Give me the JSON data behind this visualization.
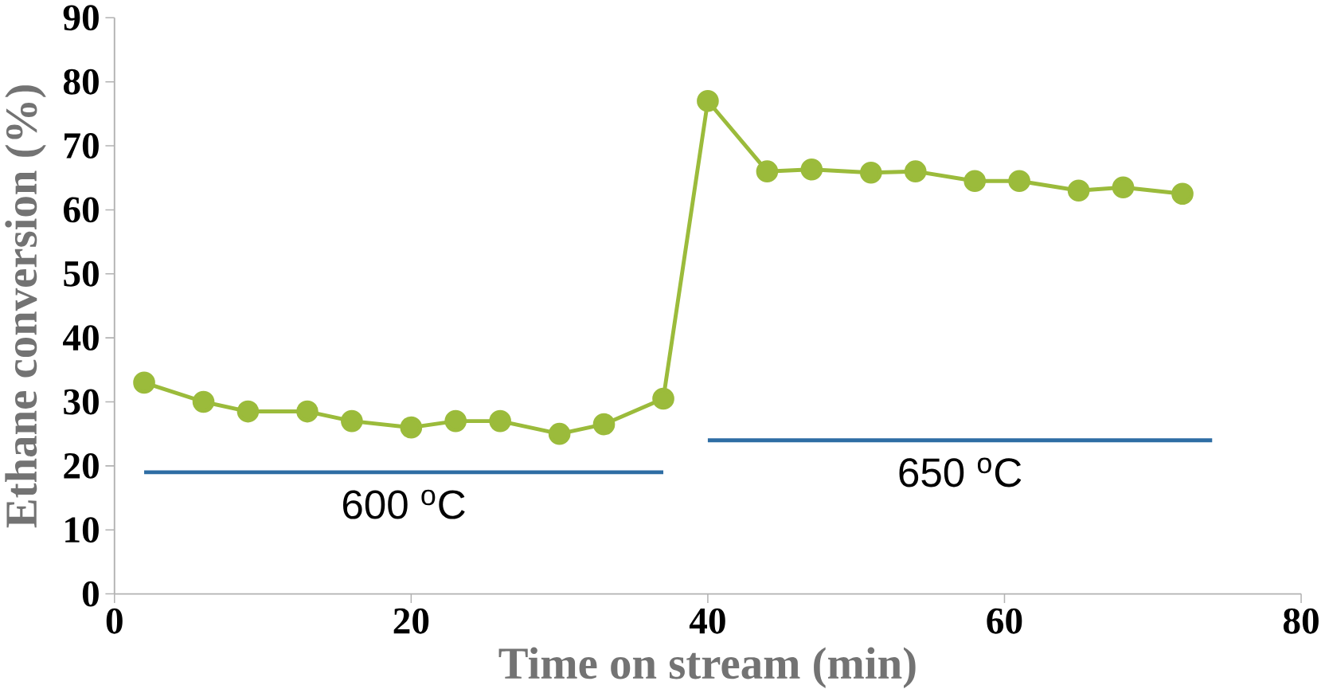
{
  "chart_data": {
    "type": "line",
    "xlabel": "Time on stream (min)",
    "ylabel": "Ethane conversion (%)",
    "xlim": [
      0,
      80
    ],
    "xticks": [
      0,
      20,
      40,
      60,
      80
    ],
    "ylim": [
      0,
      90
    ],
    "yticks": [
      0,
      10,
      20,
      30,
      40,
      50,
      60,
      70,
      80,
      90
    ],
    "series": [
      {
        "color": "#9bbb3b",
        "marker": "circle",
        "x": [
          2,
          6,
          9,
          13,
          16,
          20,
          23,
          26,
          30,
          33,
          37,
          40,
          44,
          47,
          51,
          54,
          58,
          61,
          65,
          68,
          72
        ],
        "values": [
          33,
          30,
          28.5,
          28.5,
          27,
          26,
          27,
          27,
          25,
          26.5,
          30.5,
          77,
          66,
          66.3,
          65.8,
          66,
          64.5,
          64.5,
          63,
          63.5,
          62.5
        ]
      },
      {
        "color": "#2e6da4",
        "marker": "none",
        "x": [
          2,
          37
        ],
        "values": [
          19,
          19
        ]
      },
      {
        "color": "#2e6da4",
        "marker": "none",
        "x": [
          40,
          74
        ],
        "values": [
          24,
          24
        ]
      }
    ],
    "annotations": [
      "600 $^{o}$C",
      "650 $^{o}$C"
    ]
  }
}
